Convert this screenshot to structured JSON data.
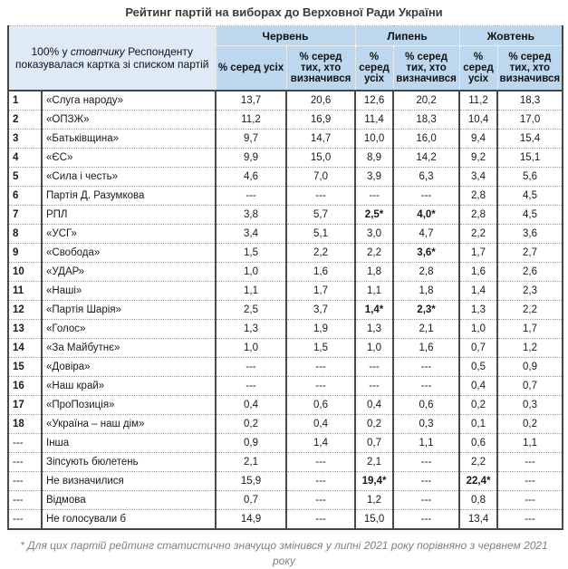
{
  "page": {
    "title": "Рейтинг партій на виборах до Верховної Ради України",
    "footnote": "* Для цих партій рейтинг статистично значущо змінився у липні 2021 року порівняно з червнем 2021 року"
  },
  "colors": {
    "header_blue": "#BDD7EE",
    "corner_blue": "#DEEAF6",
    "outer_border": "#454545",
    "dotted_border": "#9a9a9a"
  },
  "table": {
    "corner": {
      "prefix": "100% у ",
      "italic_word": "стовпчику",
      "suffix": " Респонденту показувалася картка зі списком партій"
    },
    "months": [
      "Червень",
      "Липень",
      "Жовтень"
    ],
    "sub_all": "% серед усіх",
    "sub_decided": "% серед тих, хто визначився",
    "rows": [
      {
        "num": "1",
        "party": "«Слуга народу»",
        "values": [
          "13,7",
          "20,6",
          "12,6",
          "20,2",
          "11,2",
          "18,3"
        ]
      },
      {
        "num": "2",
        "party": "«ОПЗЖ»",
        "values": [
          "11,2",
          "16,9",
          "11,4",
          "18,3",
          "10,4",
          "17,0"
        ]
      },
      {
        "num": "3",
        "party": "«Батьківщина»",
        "values": [
          "9,7",
          "14,7",
          "10,0",
          "16,0",
          "9,4",
          "15,4"
        ]
      },
      {
        "num": "4",
        "party": "«ЄС»",
        "values": [
          "9,9",
          "15,0",
          "8,9",
          "14,2",
          "9,2",
          "15,1"
        ]
      },
      {
        "num": "5",
        "party": "«Сила і честь»",
        "values": [
          "4,6",
          "7,0",
          "3,9",
          "6,3",
          "3,4",
          "5,6"
        ]
      },
      {
        "num": "6",
        "party": "Партія Д. Разумкова",
        "values": [
          "---",
          "---",
          "---",
          "---",
          "2,8",
          "4,5"
        ]
      },
      {
        "num": "7",
        "party": "РПЛ",
        "values": [
          "3,8",
          "5,7",
          "2,5*",
          "4,0*",
          "2,8",
          "4,5"
        ]
      },
      {
        "num": "8",
        "party": "«УСГ»",
        "values": [
          "3,4",
          "5,1",
          "3,0",
          "4,7",
          "2,2",
          "3,6"
        ]
      },
      {
        "num": "9",
        "party": "«Свобода»",
        "values": [
          "1,5",
          "2,2",
          "2,2",
          "3,6*",
          "1,7",
          "2,7"
        ]
      },
      {
        "num": "10",
        "party": "«УДАР»",
        "values": [
          "1,0",
          "1,6",
          "1,8",
          "2,8",
          "1,6",
          "2,6"
        ]
      },
      {
        "num": "11",
        "party": "«Наші»",
        "values": [
          "1,1",
          "1,7",
          "1,1",
          "1,8",
          "1,4",
          "2,3"
        ]
      },
      {
        "num": "12",
        "party": "«Партія Шарія»",
        "values": [
          "2,5",
          "3,7",
          "1,4*",
          "2,3*",
          "1,3",
          "2,2"
        ]
      },
      {
        "num": "13",
        "party": "«Голос»",
        "values": [
          "1,3",
          "1,9",
          "1,3",
          "2,1",
          "1,0",
          "1,7"
        ]
      },
      {
        "num": "14",
        "party": "«За Майбутнє»",
        "values": [
          "1,0",
          "1,5",
          "1,0",
          "1,6",
          "0,7",
          "1,2"
        ]
      },
      {
        "num": "15",
        "party": "«Довіра»",
        "values": [
          "---",
          "---",
          "---",
          "---",
          "0,5",
          "0,9"
        ]
      },
      {
        "num": "16",
        "party": "«Наш край»",
        "values": [
          "---",
          "---",
          "---",
          "---",
          "0,4",
          "0,7"
        ]
      },
      {
        "num": "17",
        "party": "«ПроПозиція»",
        "values": [
          "0,4",
          "0,6",
          "0,4",
          "0,6",
          "0,2",
          "0,3"
        ]
      },
      {
        "num": "18",
        "party": "«Україна – наш дім»",
        "values": [
          "0,2",
          "0,4",
          "0,2",
          "0,3",
          "0,1",
          "0,2"
        ]
      },
      {
        "num": "---",
        "party": "Інша",
        "values": [
          "0,9",
          "1,4",
          "0,7",
          "1,1",
          "0,6",
          "1,1"
        ]
      },
      {
        "num": "---",
        "party": "Зіпсують бюлетень",
        "values": [
          "2,1",
          "---",
          "2,1",
          "---",
          "2,2",
          "---"
        ]
      },
      {
        "num": "---",
        "party": "Не визначилися",
        "values": [
          "15,9",
          "---",
          "19,4*",
          "---",
          "22,4*",
          "---"
        ]
      },
      {
        "num": "---",
        "party": "Відмова",
        "values": [
          "0,7",
          "---",
          "1,2",
          "---",
          "0,8",
          "---"
        ]
      },
      {
        "num": "---",
        "party": "Не голосували б",
        "values": [
          "14,9",
          "---",
          "15,0",
          "---",
          "13,4",
          "---"
        ]
      }
    ]
  }
}
